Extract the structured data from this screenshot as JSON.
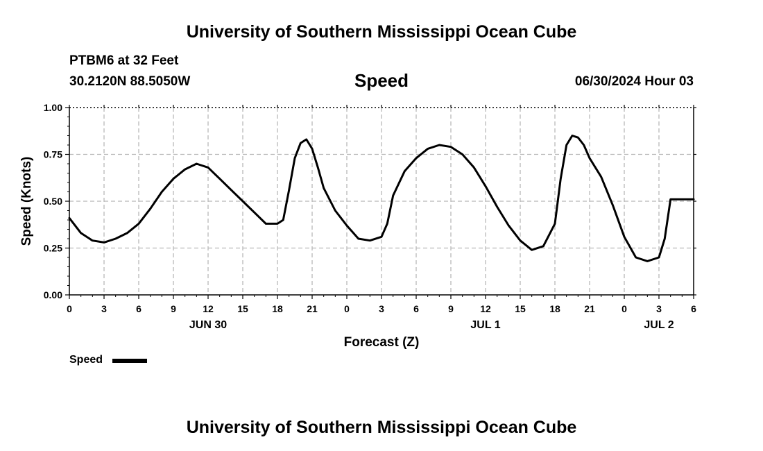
{
  "page": {
    "title": "University of Southern Mississippi Ocean Cube",
    "footer_title": "University of Southern Mississippi Ocean Cube",
    "station": "PTBM6 at 32 Feet",
    "coordinates": "30.2120N  88.5050W",
    "datetime": "06/30/2024 Hour 03"
  },
  "chart_data": {
    "type": "line",
    "title": "Speed",
    "xlabel": "Forecast (Z)",
    "ylabel": "Speed (Knots)",
    "xlim": [
      0,
      54
    ],
    "ylim": [
      0,
      1
    ],
    "grid": true,
    "legend_position": "bottom-left",
    "x_tick_hours": [
      0,
      3,
      6,
      9,
      12,
      15,
      18,
      21,
      24,
      27,
      30,
      33,
      36,
      39,
      42,
      45,
      48,
      51,
      54
    ],
    "x_tick_labels": [
      "0",
      "3",
      "6",
      "9",
      "12",
      "15",
      "18",
      "21",
      "0",
      "3",
      "6",
      "9",
      "12",
      "15",
      "18",
      "21",
      "0",
      "3",
      "6"
    ],
    "y_ticks": [
      0,
      0.25,
      0.5,
      0.75,
      1
    ],
    "y_tick_labels": [
      "0.00",
      "0.25",
      "0.50",
      "0.75",
      "1.00"
    ],
    "date_labels": [
      {
        "label": "JUN 30",
        "hour": 12
      },
      {
        "label": "JUL 1",
        "hour": 36
      },
      {
        "label": "JUL 2",
        "hour": 51
      }
    ],
    "series": [
      {
        "name": "Speed",
        "color": "#000000",
        "x": [
          0,
          1,
          2,
          3,
          4,
          5,
          6,
          7,
          8,
          9,
          10,
          11,
          12,
          13,
          14,
          15,
          16,
          17,
          18,
          18.5,
          19,
          19.5,
          20,
          20.5,
          21,
          21.5,
          22,
          23,
          24,
          25,
          26,
          27,
          27.5,
          28,
          29,
          30,
          31,
          32,
          33,
          34,
          35,
          36,
          37,
          38,
          39,
          40,
          41,
          42,
          42.5,
          43,
          43.5,
          44,
          44.5,
          45,
          46,
          47,
          48,
          49,
          50,
          51,
          51.5,
          52,
          53,
          54
        ],
        "y": [
          0.41,
          0.33,
          0.29,
          0.28,
          0.3,
          0.33,
          0.38,
          0.46,
          0.55,
          0.62,
          0.67,
          0.7,
          0.68,
          0.62,
          0.56,
          0.5,
          0.44,
          0.38,
          0.38,
          0.4,
          0.56,
          0.73,
          0.81,
          0.83,
          0.78,
          0.68,
          0.57,
          0.45,
          0.37,
          0.3,
          0.29,
          0.31,
          0.38,
          0.53,
          0.66,
          0.73,
          0.78,
          0.8,
          0.79,
          0.75,
          0.68,
          0.58,
          0.47,
          0.37,
          0.29,
          0.24,
          0.26,
          0.38,
          0.62,
          0.8,
          0.85,
          0.84,
          0.8,
          0.73,
          0.63,
          0.48,
          0.31,
          0.2,
          0.18,
          0.2,
          0.3,
          0.51,
          0.51,
          0.51
        ]
      }
    ]
  }
}
